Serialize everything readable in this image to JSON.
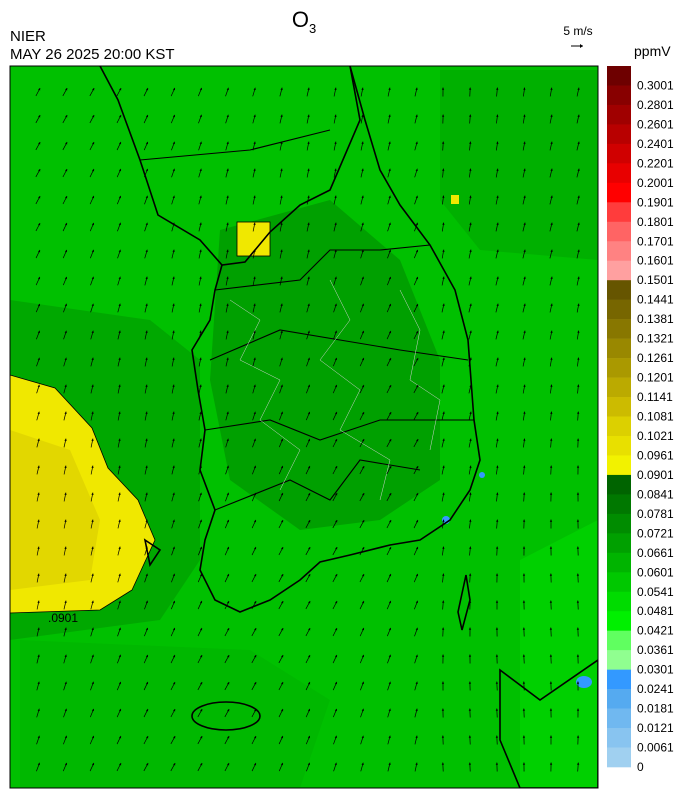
{
  "header": {
    "title": "O",
    "title_subscript": "3",
    "agency": "NIER",
    "timestamp": "MAY 26 2025 20:00 KST",
    "wind_scale": "5 m/s"
  },
  "colorbar": {
    "unit": "ppmV",
    "labels": [
      "0.3001",
      "0.2801",
      "0.2601",
      "0.2401",
      "0.2201",
      "0.2001",
      "0.1901",
      "0.1801",
      "0.1701",
      "0.1601",
      "0.1501",
      "0.1441",
      "0.1381",
      "0.1321",
      "0.1261",
      "0.1201",
      "0.1141",
      "0.1081",
      "0.1021",
      "0.0961",
      "0.0901",
      "0.0841",
      "0.0781",
      "0.0721",
      "0.0661",
      "0.0601",
      "0.0541",
      "0.0481",
      "0.0421",
      "0.0361",
      "0.0301",
      "0.0241",
      "0.0181",
      "0.0121",
      "0.0061",
      "0"
    ],
    "colors": [
      "#6e0000",
      "#880000",
      "#a00000",
      "#b80000",
      "#d00000",
      "#e80000",
      "#ff0000",
      "#ff3c3c",
      "#ff6464",
      "#ff8282",
      "#ffa0a0",
      "#665500",
      "#776600",
      "#887700",
      "#998800",
      "#aa9900",
      "#bbaa00",
      "#ccbb00",
      "#dcd000",
      "#e8e000",
      "#f2f200",
      "#006400",
      "#007800",
      "#008c00",
      "#00a000",
      "#00b400",
      "#00c800",
      "#00dc00",
      "#00f000",
      "#60ff60",
      "#90ff90",
      "#3399ff",
      "#55aaf0",
      "#70b8f0",
      "#88c4f0",
      "#a0d0f0"
    ]
  },
  "map": {
    "contour_label": ".0901"
  }
}
